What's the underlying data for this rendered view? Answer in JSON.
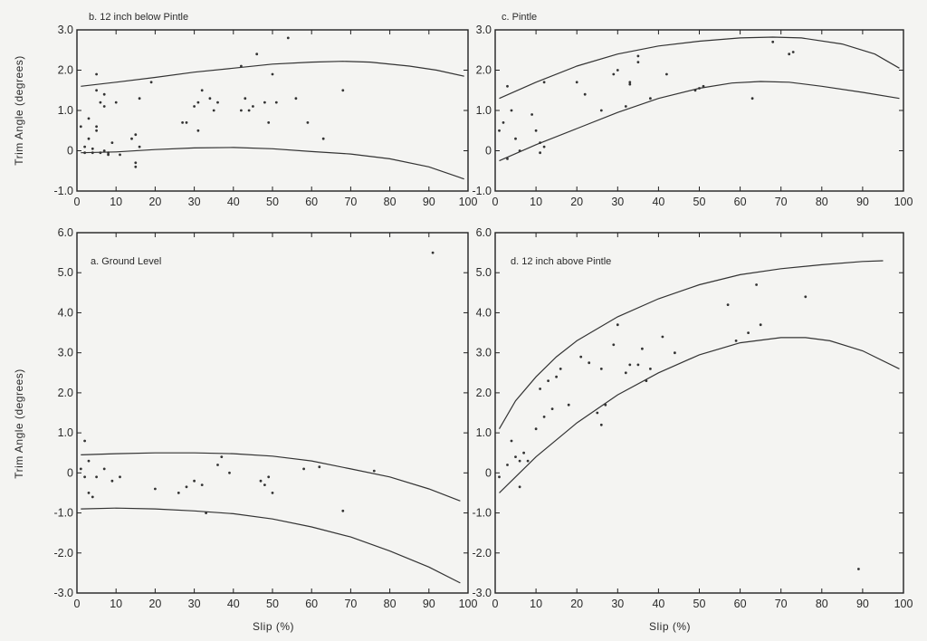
{
  "figure": {
    "x_label_left": "Slip (%)",
    "x_label_right": "Slip (%)",
    "y_label_top": "Trim Angle (degrees)",
    "y_label_bottom": "Trim Angle (degrees)"
  },
  "chart_data": [
    {
      "id": "b",
      "type": "scatter",
      "title": "b. 12 inch below Pintle",
      "xlim": [
        0,
        100
      ],
      "ylim": [
        -1.0,
        3.0
      ],
      "xticks": [
        "0",
        "10",
        "20",
        "30",
        "40",
        "50",
        "60",
        "70",
        "80",
        "90",
        "100"
      ],
      "yticks": [
        "-1.0",
        "0",
        "1.0",
        "2.0",
        "3.0"
      ],
      "grid": false,
      "xlabel": "",
      "ylabel": "Trim Angle (degrees)",
      "points": [
        [
          1,
          0.6
        ],
        [
          2,
          0.1
        ],
        [
          2,
          -0.05
        ],
        [
          3,
          0.3
        ],
        [
          3,
          0.8
        ],
        [
          4,
          0.05
        ],
        [
          4,
          -0.05
        ],
        [
          5,
          1.5
        ],
        [
          5,
          1.9
        ],
        [
          5,
          0.6
        ],
        [
          5,
          0.5
        ],
        [
          6,
          -0.05
        ],
        [
          6,
          1.2
        ],
        [
          7,
          1.4
        ],
        [
          7,
          1.1
        ],
        [
          7,
          0.0
        ],
        [
          8,
          -0.1
        ],
        [
          8,
          -0.05
        ],
        [
          9,
          0.2
        ],
        [
          10,
          1.2
        ],
        [
          11,
          -0.1
        ],
        [
          14,
          0.3
        ],
        [
          15,
          -0.3
        ],
        [
          15,
          -0.4
        ],
        [
          15,
          0.4
        ],
        [
          16,
          1.3
        ],
        [
          16,
          0.1
        ],
        [
          19,
          1.7
        ],
        [
          27,
          0.7
        ],
        [
          28,
          0.7
        ],
        [
          30,
          1.1
        ],
        [
          31,
          0.5
        ],
        [
          31,
          1.2
        ],
        [
          32,
          1.5
        ],
        [
          34,
          1.3
        ],
        [
          35,
          1.0
        ],
        [
          36,
          1.2
        ],
        [
          42,
          1.0
        ],
        [
          42,
          2.1
        ],
        [
          43,
          1.3
        ],
        [
          44,
          1.0
        ],
        [
          45,
          1.1
        ],
        [
          46,
          2.4
        ],
        [
          48,
          1.2
        ],
        [
          49,
          0.7
        ],
        [
          50,
          1.9
        ],
        [
          51,
          1.2
        ],
        [
          54,
          2.8
        ],
        [
          56,
          1.3
        ],
        [
          59,
          0.7
        ],
        [
          63,
          0.3
        ],
        [
          68,
          1.5
        ]
      ],
      "upper_curve": [
        [
          1,
          1.6
        ],
        [
          10,
          1.7
        ],
        [
          20,
          1.82
        ],
        [
          30,
          1.95
        ],
        [
          40,
          2.05
        ],
        [
          50,
          2.15
        ],
        [
          60,
          2.2
        ],
        [
          68,
          2.22
        ],
        [
          75,
          2.2
        ],
        [
          85,
          2.1
        ],
        [
          92,
          2.0
        ],
        [
          99,
          1.85
        ]
      ],
      "lower_curve": [
        [
          1,
          -0.05
        ],
        [
          10,
          -0.03
        ],
        [
          20,
          0.03
        ],
        [
          30,
          0.07
        ],
        [
          40,
          0.08
        ],
        [
          50,
          0.05
        ],
        [
          60,
          -0.02
        ],
        [
          70,
          -0.08
        ],
        [
          80,
          -0.2
        ],
        [
          90,
          -0.4
        ],
        [
          99,
          -0.7
        ]
      ]
    },
    {
      "id": "c",
      "type": "scatter",
      "title": "c. Pintle",
      "xlim": [
        0,
        100
      ],
      "ylim": [
        -1.0,
        3.0
      ],
      "xticks": [
        "0",
        "10",
        "20",
        "30",
        "40",
        "50",
        "60",
        "70",
        "80",
        "90",
        "100"
      ],
      "yticks": [
        "-1.0",
        "0",
        "1.0",
        "2.0",
        "3.0"
      ],
      "grid": false,
      "xlabel": "",
      "ylabel": "",
      "points": [
        [
          1,
          0.5
        ],
        [
          2,
          0.7
        ],
        [
          3,
          1.6
        ],
        [
          3,
          -0.2
        ],
        [
          4,
          1.0
        ],
        [
          5,
          0.3
        ],
        [
          6,
          0.0
        ],
        [
          9,
          0.9
        ],
        [
          10,
          0.5
        ],
        [
          11,
          0.2
        ],
        [
          11,
          -0.05
        ],
        [
          12,
          1.7
        ],
        [
          12,
          0.1
        ],
        [
          20,
          1.7
        ],
        [
          22,
          1.4
        ],
        [
          26,
          1.0
        ],
        [
          29,
          1.9
        ],
        [
          30,
          2.0
        ],
        [
          32,
          1.1
        ],
        [
          33,
          1.7
        ],
        [
          33,
          1.65
        ],
        [
          35,
          2.2
        ],
        [
          35,
          2.35
        ],
        [
          38,
          1.3
        ],
        [
          42,
          1.9
        ],
        [
          49,
          1.5
        ],
        [
          50,
          1.55
        ],
        [
          51,
          1.6
        ],
        [
          63,
          1.3
        ],
        [
          68,
          2.7
        ],
        [
          72,
          2.4
        ],
        [
          73,
          2.45
        ]
      ],
      "upper_curve": [
        [
          1,
          1.3
        ],
        [
          10,
          1.7
        ],
        [
          20,
          2.1
        ],
        [
          30,
          2.4
        ],
        [
          40,
          2.6
        ],
        [
          50,
          2.72
        ],
        [
          60,
          2.8
        ],
        [
          68,
          2.82
        ],
        [
          75,
          2.8
        ],
        [
          85,
          2.65
        ],
        [
          93,
          2.4
        ],
        [
          99,
          2.05
        ]
      ],
      "lower_curve": [
        [
          1,
          -0.25
        ],
        [
          10,
          0.15
        ],
        [
          20,
          0.55
        ],
        [
          30,
          0.95
        ],
        [
          40,
          1.3
        ],
        [
          50,
          1.55
        ],
        [
          58,
          1.68
        ],
        [
          65,
          1.72
        ],
        [
          72,
          1.7
        ],
        [
          80,
          1.6
        ],
        [
          90,
          1.45
        ],
        [
          99,
          1.3
        ]
      ]
    },
    {
      "id": "a",
      "type": "scatter",
      "title": "a. Ground Level",
      "xlim": [
        0,
        100
      ],
      "ylim": [
        -3.0,
        6.0
      ],
      "xticks": [
        "0",
        "10",
        "20",
        "30",
        "40",
        "50",
        "60",
        "70",
        "80",
        "90",
        "100"
      ],
      "yticks": [
        "-3.0",
        "-2.0",
        "-1.0",
        "0",
        "1.0",
        "2.0",
        "3.0",
        "4.0",
        "5.0",
        "6.0"
      ],
      "grid": false,
      "xlabel": "Slip (%)",
      "ylabel": "Trim Angle (degrees)",
      "points": [
        [
          1,
          0.1
        ],
        [
          2,
          0.8
        ],
        [
          2,
          -0.1
        ],
        [
          3,
          -0.5
        ],
        [
          3,
          0.3
        ],
        [
          4,
          -0.6
        ],
        [
          5,
          -0.1
        ],
        [
          7,
          0.1
        ],
        [
          9,
          -0.2
        ],
        [
          11,
          -0.1
        ],
        [
          20,
          -0.4
        ],
        [
          26,
          -0.5
        ],
        [
          28,
          -0.35
        ],
        [
          30,
          -0.2
        ],
        [
          32,
          -0.3
        ],
        [
          33,
          -1.0
        ],
        [
          36,
          0.2
        ],
        [
          37,
          0.4
        ],
        [
          39,
          0.0
        ],
        [
          47,
          -0.2
        ],
        [
          48,
          -0.3
        ],
        [
          49,
          -0.1
        ],
        [
          50,
          -0.5
        ],
        [
          58,
          0.1
        ],
        [
          62,
          0.15
        ],
        [
          68,
          -0.95
        ],
        [
          76,
          0.05
        ],
        [
          91,
          5.5
        ]
      ],
      "upper_curve": [
        [
          1,
          0.45
        ],
        [
          10,
          0.48
        ],
        [
          20,
          0.5
        ],
        [
          30,
          0.5
        ],
        [
          40,
          0.48
        ],
        [
          50,
          0.42
        ],
        [
          60,
          0.3
        ],
        [
          70,
          0.1
        ],
        [
          80,
          -0.1
        ],
        [
          90,
          -0.4
        ],
        [
          98,
          -0.7
        ]
      ],
      "lower_curve": [
        [
          1,
          -0.9
        ],
        [
          10,
          -0.88
        ],
        [
          20,
          -0.9
        ],
        [
          30,
          -0.95
        ],
        [
          40,
          -1.02
        ],
        [
          50,
          -1.15
        ],
        [
          60,
          -1.35
        ],
        [
          70,
          -1.6
        ],
        [
          80,
          -1.95
        ],
        [
          90,
          -2.35
        ],
        [
          98,
          -2.75
        ]
      ]
    },
    {
      "id": "d",
      "type": "scatter",
      "title": "d. 12 inch above Pintle",
      "xlim": [
        0,
        100
      ],
      "ylim": [
        -3.0,
        6.0
      ],
      "xticks": [
        "0",
        "10",
        "20",
        "30",
        "40",
        "50",
        "60",
        "70",
        "80",
        "90",
        "100"
      ],
      "yticks": [
        "-3.0",
        "-2.0",
        "-1.0",
        "0",
        "1.0",
        "2.0",
        "3.0",
        "4.0",
        "5.0",
        "6.0"
      ],
      "grid": false,
      "xlabel": "Slip (%)",
      "ylabel": "",
      "points": [
        [
          1,
          -0.1
        ],
        [
          3,
          0.2
        ],
        [
          4,
          0.8
        ],
        [
          5,
          0.4
        ],
        [
          6,
          -0.35
        ],
        [
          6,
          0.3
        ],
        [
          7,
          0.5
        ],
        [
          8,
          0.3
        ],
        [
          10,
          1.1
        ],
        [
          11,
          2.1
        ],
        [
          12,
          1.4
        ],
        [
          13,
          2.3
        ],
        [
          14,
          1.6
        ],
        [
          15,
          2.4
        ],
        [
          16,
          2.6
        ],
        [
          18,
          1.7
        ],
        [
          21,
          2.9
        ],
        [
          23,
          2.75
        ],
        [
          25,
          1.5
        ],
        [
          26,
          2.6
        ],
        [
          26,
          1.2
        ],
        [
          27,
          1.7
        ],
        [
          29,
          3.2
        ],
        [
          30,
          3.7
        ],
        [
          32,
          2.5
        ],
        [
          33,
          2.7
        ],
        [
          35,
          2.7
        ],
        [
          36,
          3.1
        ],
        [
          37,
          2.3
        ],
        [
          38,
          2.6
        ],
        [
          41,
          3.4
        ],
        [
          44,
          3.0
        ],
        [
          57,
          4.2
        ],
        [
          59,
          3.3
        ],
        [
          62,
          3.5
        ],
        [
          64,
          4.7
        ],
        [
          65,
          3.7
        ],
        [
          76,
          4.4
        ],
        [
          89,
          -2.4
        ]
      ],
      "upper_curve": [
        [
          1,
          1.1
        ],
        [
          5,
          1.8
        ],
        [
          10,
          2.4
        ],
        [
          15,
          2.9
        ],
        [
          20,
          3.3
        ],
        [
          30,
          3.9
        ],
        [
          40,
          4.35
        ],
        [
          50,
          4.7
        ],
        [
          60,
          4.95
        ],
        [
          70,
          5.1
        ],
        [
          80,
          5.2
        ],
        [
          90,
          5.28
        ],
        [
          95,
          5.3
        ]
      ],
      "lower_curve": [
        [
          1,
          -0.5
        ],
        [
          10,
          0.4
        ],
        [
          20,
          1.25
        ],
        [
          30,
          1.95
        ],
        [
          40,
          2.5
        ],
        [
          50,
          2.95
        ],
        [
          60,
          3.25
        ],
        [
          70,
          3.38
        ],
        [
          76,
          3.38
        ],
        [
          82,
          3.3
        ],
        [
          90,
          3.05
        ],
        [
          99,
          2.6
        ]
      ]
    }
  ]
}
